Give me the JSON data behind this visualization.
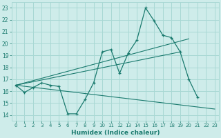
{
  "xlabel": "Humidex (Indice chaleur)",
  "bg_color": "#ceecea",
  "grid_color": "#a8d8d4",
  "line_color": "#1a7a6e",
  "xlim": [
    -0.5,
    23.5
  ],
  "ylim": [
    13.5,
    23.5
  ],
  "yticks": [
    14,
    15,
    16,
    17,
    18,
    19,
    20,
    21,
    22,
    23
  ],
  "xticks": [
    0,
    1,
    2,
    3,
    4,
    5,
    6,
    7,
    8,
    9,
    10,
    11,
    12,
    13,
    14,
    15,
    16,
    17,
    18,
    19,
    20,
    21,
    22,
    23
  ],
  "main_x": [
    0,
    1,
    2,
    3,
    4,
    5,
    6,
    7,
    8,
    9,
    10,
    11,
    12,
    13,
    14,
    15,
    16,
    17,
    18,
    19,
    20,
    21
  ],
  "main_y": [
    16.5,
    15.9,
    16.3,
    16.7,
    16.5,
    16.4,
    14.1,
    14.1,
    15.3,
    16.7,
    19.3,
    19.5,
    17.5,
    19.2,
    20.3,
    23.0,
    21.9,
    20.7,
    20.5,
    19.3,
    17.0,
    15.5
  ],
  "trend_lines": [
    {
      "x": [
        0,
        23
      ],
      "y": [
        16.5,
        14.5
      ]
    },
    {
      "x": [
        0,
        19
      ],
      "y": [
        16.5,
        19.3
      ]
    },
    {
      "x": [
        0,
        20
      ],
      "y": [
        16.5,
        20.4
      ]
    }
  ]
}
